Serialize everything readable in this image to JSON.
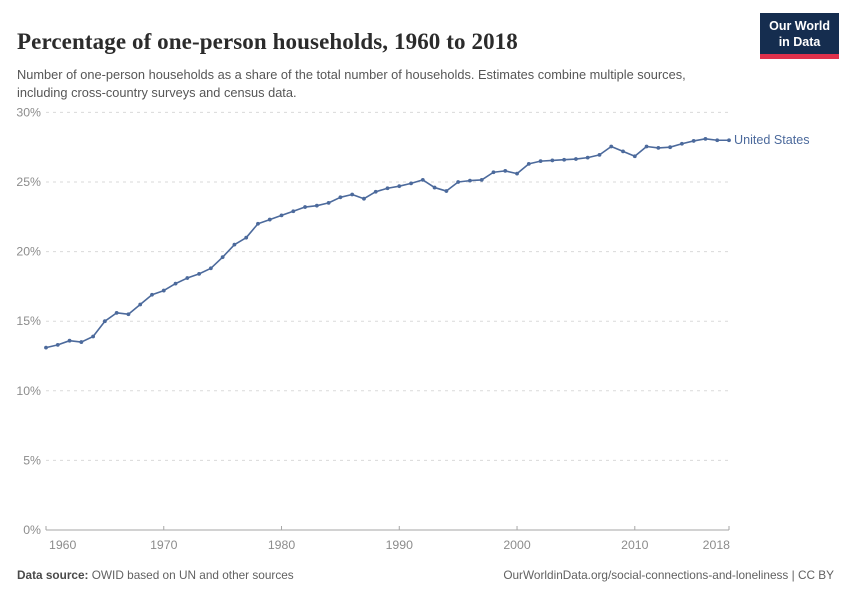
{
  "header": {
    "title": "Percentage of one-person households, 1960 to 2018",
    "subtitle": "Number of one-person households as a share of the total number of households. Estimates combine multiple sources, including cross-country surveys and census data.",
    "logo": {
      "line1": "Our World",
      "line2": "in Data"
    }
  },
  "chart_data": {
    "type": "line",
    "title": "Percentage of one-person households, 1960 to 2018",
    "xlabel": "",
    "ylabel": "",
    "xlim": [
      1960,
      2018
    ],
    "ylim": [
      0,
      30
    ],
    "grid": "horizontal-dashed",
    "legend_position": "end-of-line-label",
    "xticks": [
      {
        "year": 1960,
        "label": "1960"
      },
      {
        "year": 1970,
        "label": "1970"
      },
      {
        "year": 1980,
        "label": "1980"
      },
      {
        "year": 1990,
        "label": "1990"
      },
      {
        "year": 2000,
        "label": "2000"
      },
      {
        "year": 2010,
        "label": "2010"
      },
      {
        "year": 2018,
        "label": "2018"
      }
    ],
    "yticks": [
      {
        "value": 0,
        "label": "0%"
      },
      {
        "value": 5,
        "label": "5%"
      },
      {
        "value": 10,
        "label": "10%"
      },
      {
        "value": 15,
        "label": "15%"
      },
      {
        "value": 20,
        "label": "20%"
      },
      {
        "value": 25,
        "label": "25%"
      },
      {
        "value": 30,
        "label": "30%"
      }
    ],
    "series": [
      {
        "name": "United States",
        "color": "#4C6A9C",
        "x": [
          1960,
          1961,
          1962,
          1963,
          1964,
          1965,
          1966,
          1967,
          1968,
          1969,
          1970,
          1971,
          1972,
          1973,
          1974,
          1975,
          1976,
          1977,
          1978,
          1979,
          1980,
          1981,
          1982,
          1983,
          1984,
          1985,
          1986,
          1987,
          1988,
          1989,
          1990,
          1991,
          1992,
          1993,
          1994,
          1995,
          1996,
          1997,
          1998,
          1999,
          2000,
          2001,
          2002,
          2003,
          2004,
          2005,
          2006,
          2007,
          2008,
          2009,
          2010,
          2011,
          2012,
          2013,
          2014,
          2015,
          2016,
          2017,
          2018
        ],
        "values": [
          13.1,
          13.3,
          13.6,
          13.5,
          13.9,
          15.0,
          15.6,
          15.5,
          16.2,
          16.9,
          17.2,
          17.7,
          18.1,
          18.4,
          18.8,
          19.6,
          20.5,
          21.0,
          22.0,
          22.3,
          22.6,
          22.9,
          23.2,
          23.3,
          23.5,
          23.9,
          24.1,
          23.8,
          24.3,
          24.55,
          24.7,
          24.9,
          25.15,
          24.6,
          24.35,
          25.0,
          25.1,
          25.15,
          25.7,
          25.8,
          25.6,
          26.3,
          26.5,
          26.55,
          26.6,
          26.65,
          26.75,
          26.95,
          27.55,
          27.2,
          26.85,
          27.55,
          27.45,
          27.5,
          27.75,
          27.95,
          28.1,
          28.0,
          28.0
        ]
      }
    ]
  },
  "footer": {
    "source_label": "Data source:",
    "source_text": " OWID based on UN and other sources",
    "link_text": "OurWorldinData.org/social-connections-and-loneliness | CC BY"
  },
  "colors": {
    "line": "#4C6A9C",
    "logo_navy": "#152d4f",
    "logo_red": "#e0314b",
    "gridline": "#dadada",
    "axis": "#a6a6a6",
    "tick_label": "#8c8c8c"
  }
}
